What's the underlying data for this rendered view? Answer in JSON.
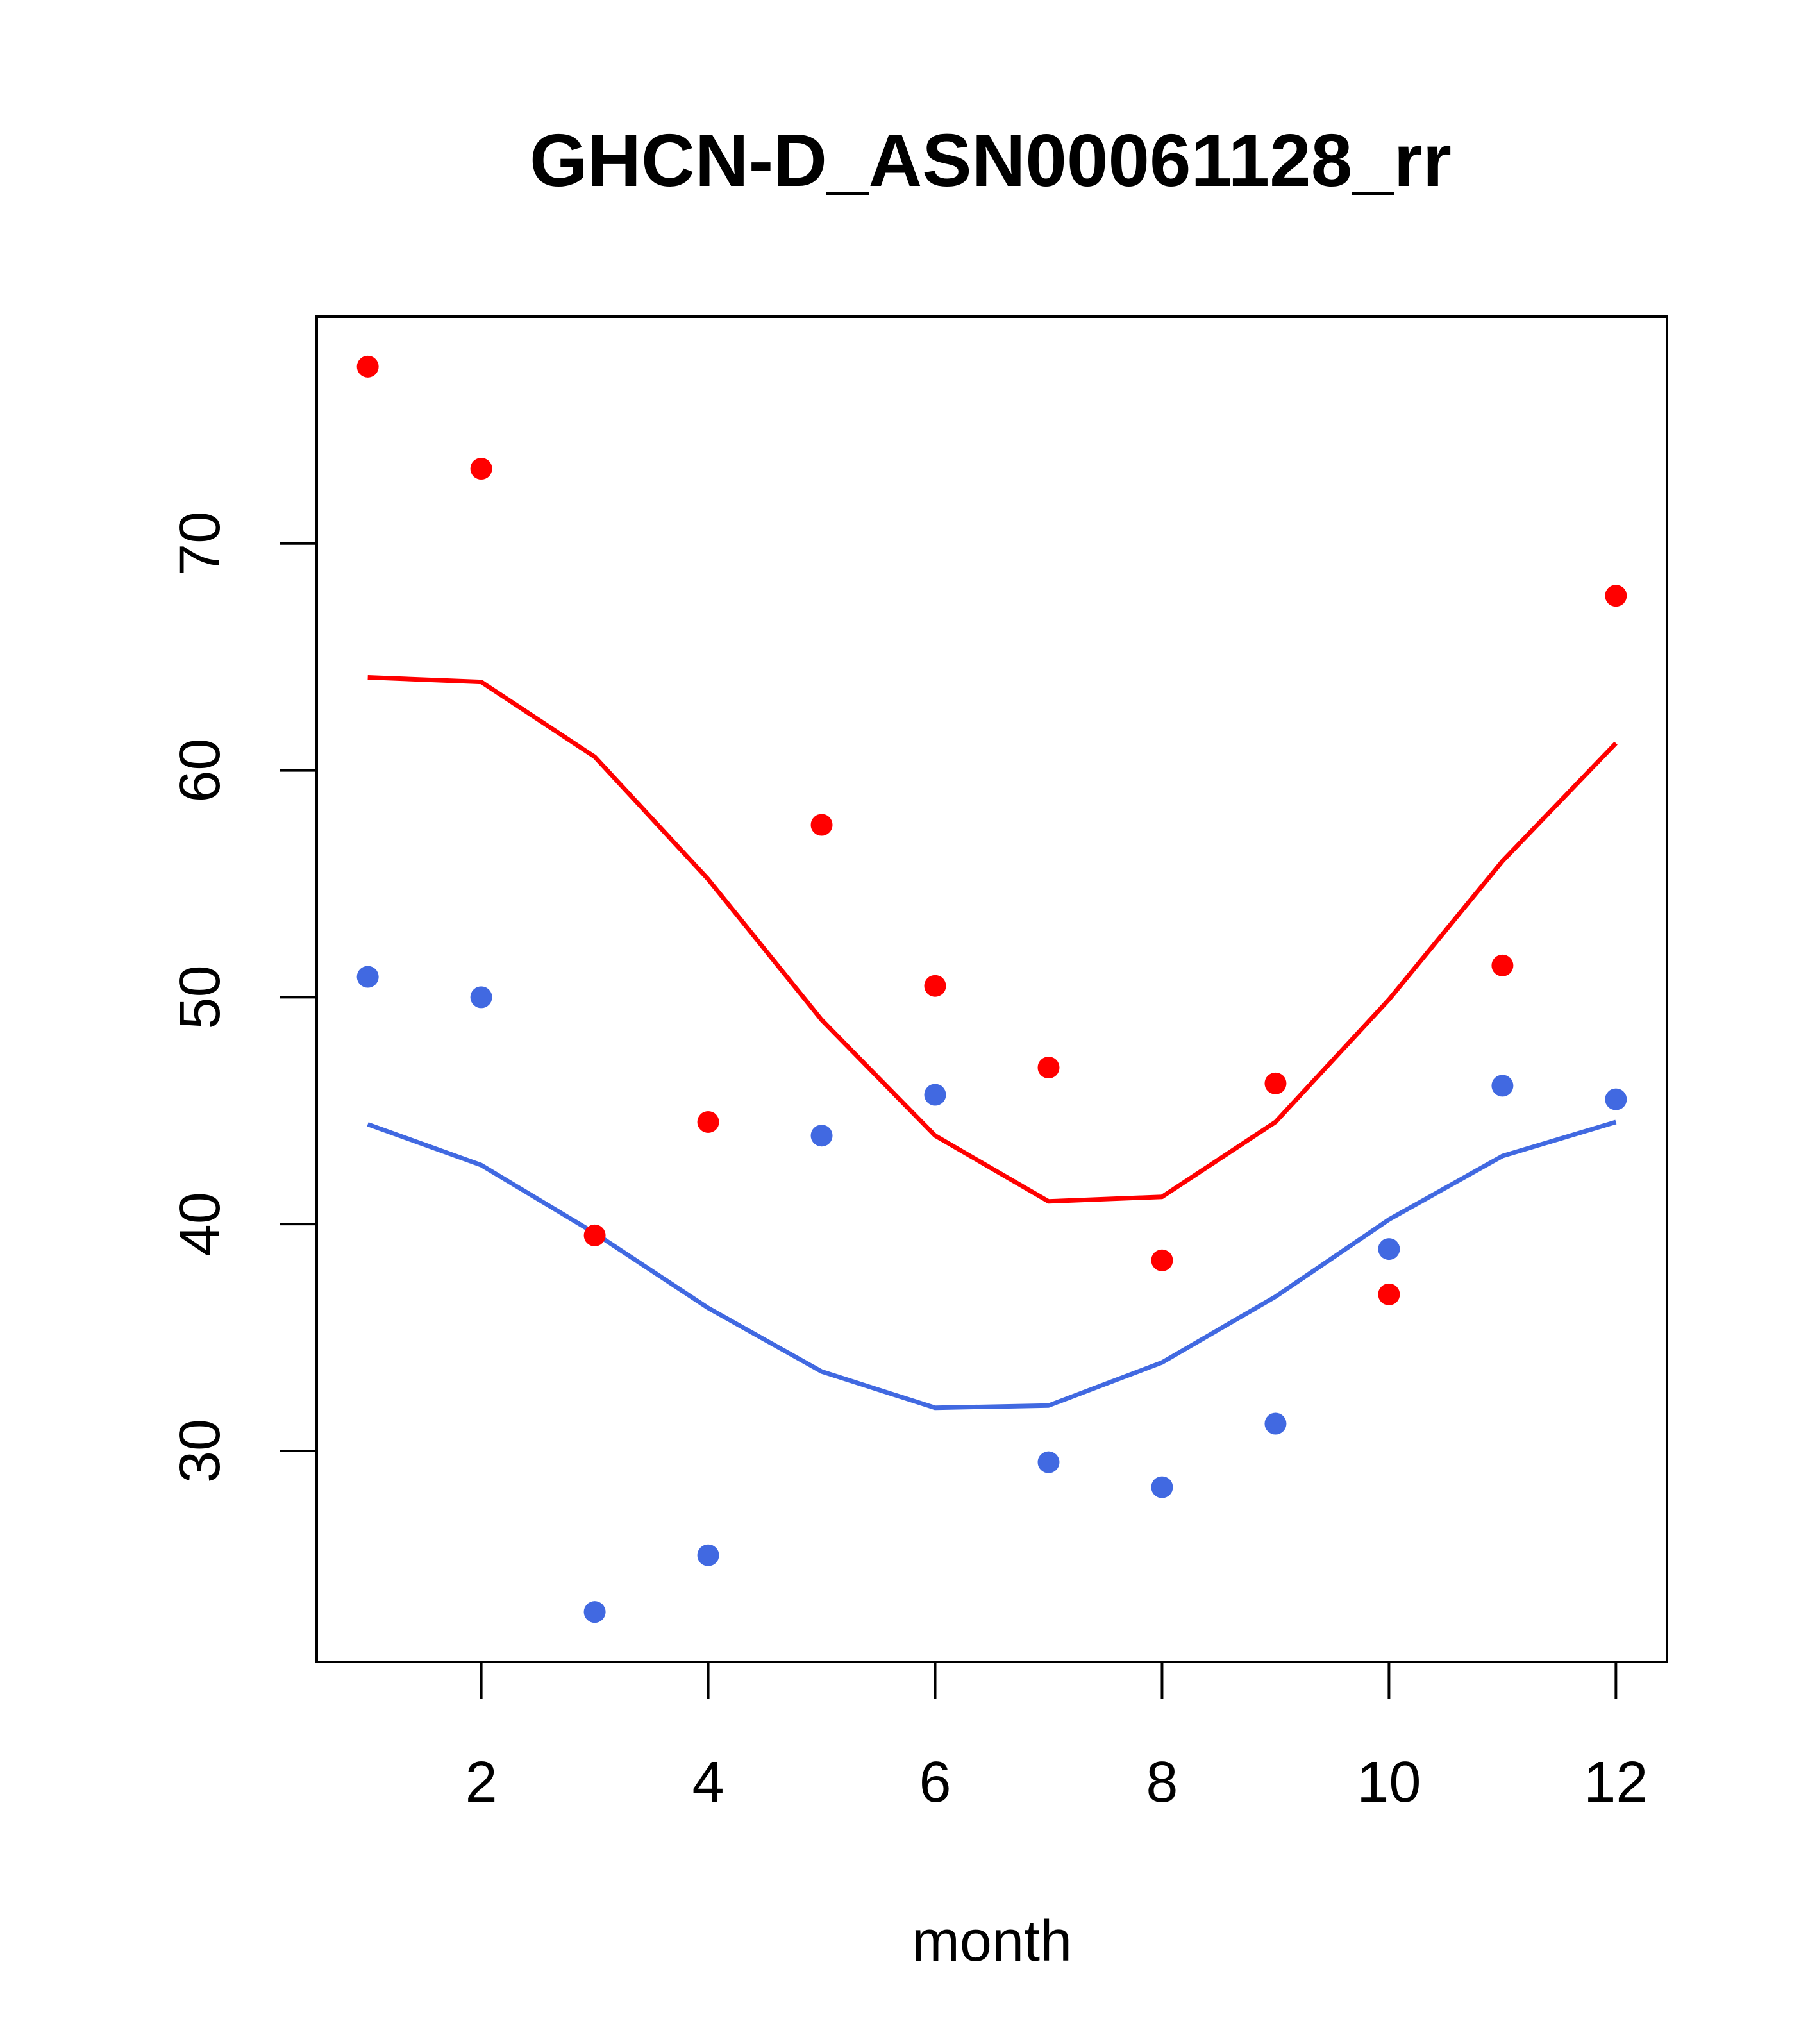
{
  "chart_data": {
    "type": "scatter",
    "title": "GHCN-D_ASN00061128_rr",
    "xlabel": "month",
    "ylabel": "",
    "xlim": [
      0.55,
      12.45
    ],
    "ylim": [
      20.7,
      80.0
    ],
    "x_ticks": [
      2,
      4,
      6,
      8,
      10,
      12
    ],
    "y_ticks": [
      30,
      40,
      50,
      60,
      70
    ],
    "grid": false,
    "legend": "none",
    "x": [
      1,
      2,
      3,
      4,
      5,
      6,
      7,
      8,
      9,
      10,
      11,
      12
    ],
    "series": [
      {
        "color": "#ff0000",
        "points": [
          77.8,
          73.3,
          39.5,
          44.5,
          57.6,
          50.5,
          46.9,
          38.4,
          46.2,
          36.9,
          51.4,
          67.7
        ],
        "line": [
          64.1,
          63.9,
          60.6,
          55.2,
          49.0,
          43.9,
          41.0,
          41.2,
          44.5,
          49.9,
          56.0,
          61.2
        ]
      },
      {
        "color": "#4169e1",
        "points": [
          50.9,
          50.0,
          22.9,
          25.4,
          43.9,
          45.7,
          29.5,
          28.4,
          31.2,
          38.9,
          46.1,
          45.5
        ],
        "line": [
          44.4,
          42.6,
          39.6,
          36.3,
          33.5,
          31.9,
          32.0,
          33.9,
          36.8,
          40.2,
          43.0,
          44.5
        ]
      }
    ]
  }
}
